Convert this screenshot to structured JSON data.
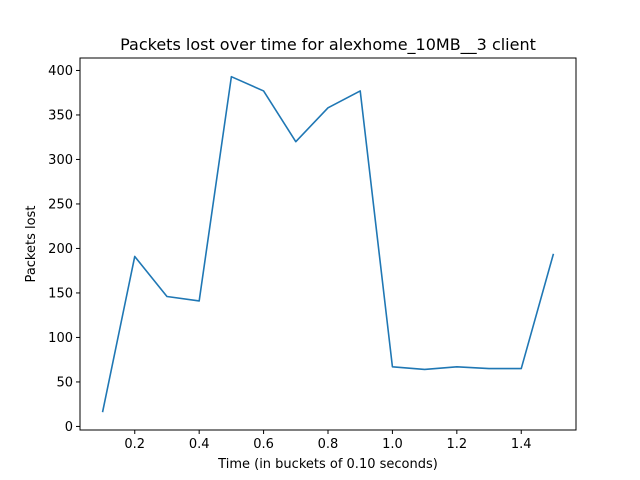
{
  "chart_data": {
    "type": "line",
    "title": "Packets lost over time for alexhome_10MB__3 client",
    "xlabel": "Time (in buckets of 0.10 seconds)",
    "ylabel": "Packets lost",
    "xlim": [
      0.03,
      1.57
    ],
    "ylim": [
      -4,
      414
    ],
    "xticks": [
      0.2,
      0.4,
      0.6,
      0.8,
      1.0,
      1.2,
      1.4
    ],
    "xtick_labels": [
      "0.2",
      "0.4",
      "0.6",
      "0.8",
      "1.0",
      "1.2",
      "1.4"
    ],
    "yticks": [
      0,
      50,
      100,
      150,
      200,
      250,
      300,
      350,
      400
    ],
    "ytick_labels": [
      "0",
      "50",
      "100",
      "150",
      "200",
      "250",
      "300",
      "350",
      "400"
    ],
    "grid": false,
    "line_color": "#1f77b4",
    "series": [
      {
        "x": [
          0.1,
          0.2,
          0.3,
          0.4,
          0.5,
          0.6,
          0.7,
          0.8,
          0.9,
          1.0,
          1.1,
          1.2,
          1.3,
          1.4,
          1.5
        ],
        "values": [
          16,
          191,
          146,
          141,
          393,
          377,
          320,
          358,
          377,
          67,
          64,
          67,
          65,
          65,
          194
        ]
      }
    ]
  }
}
